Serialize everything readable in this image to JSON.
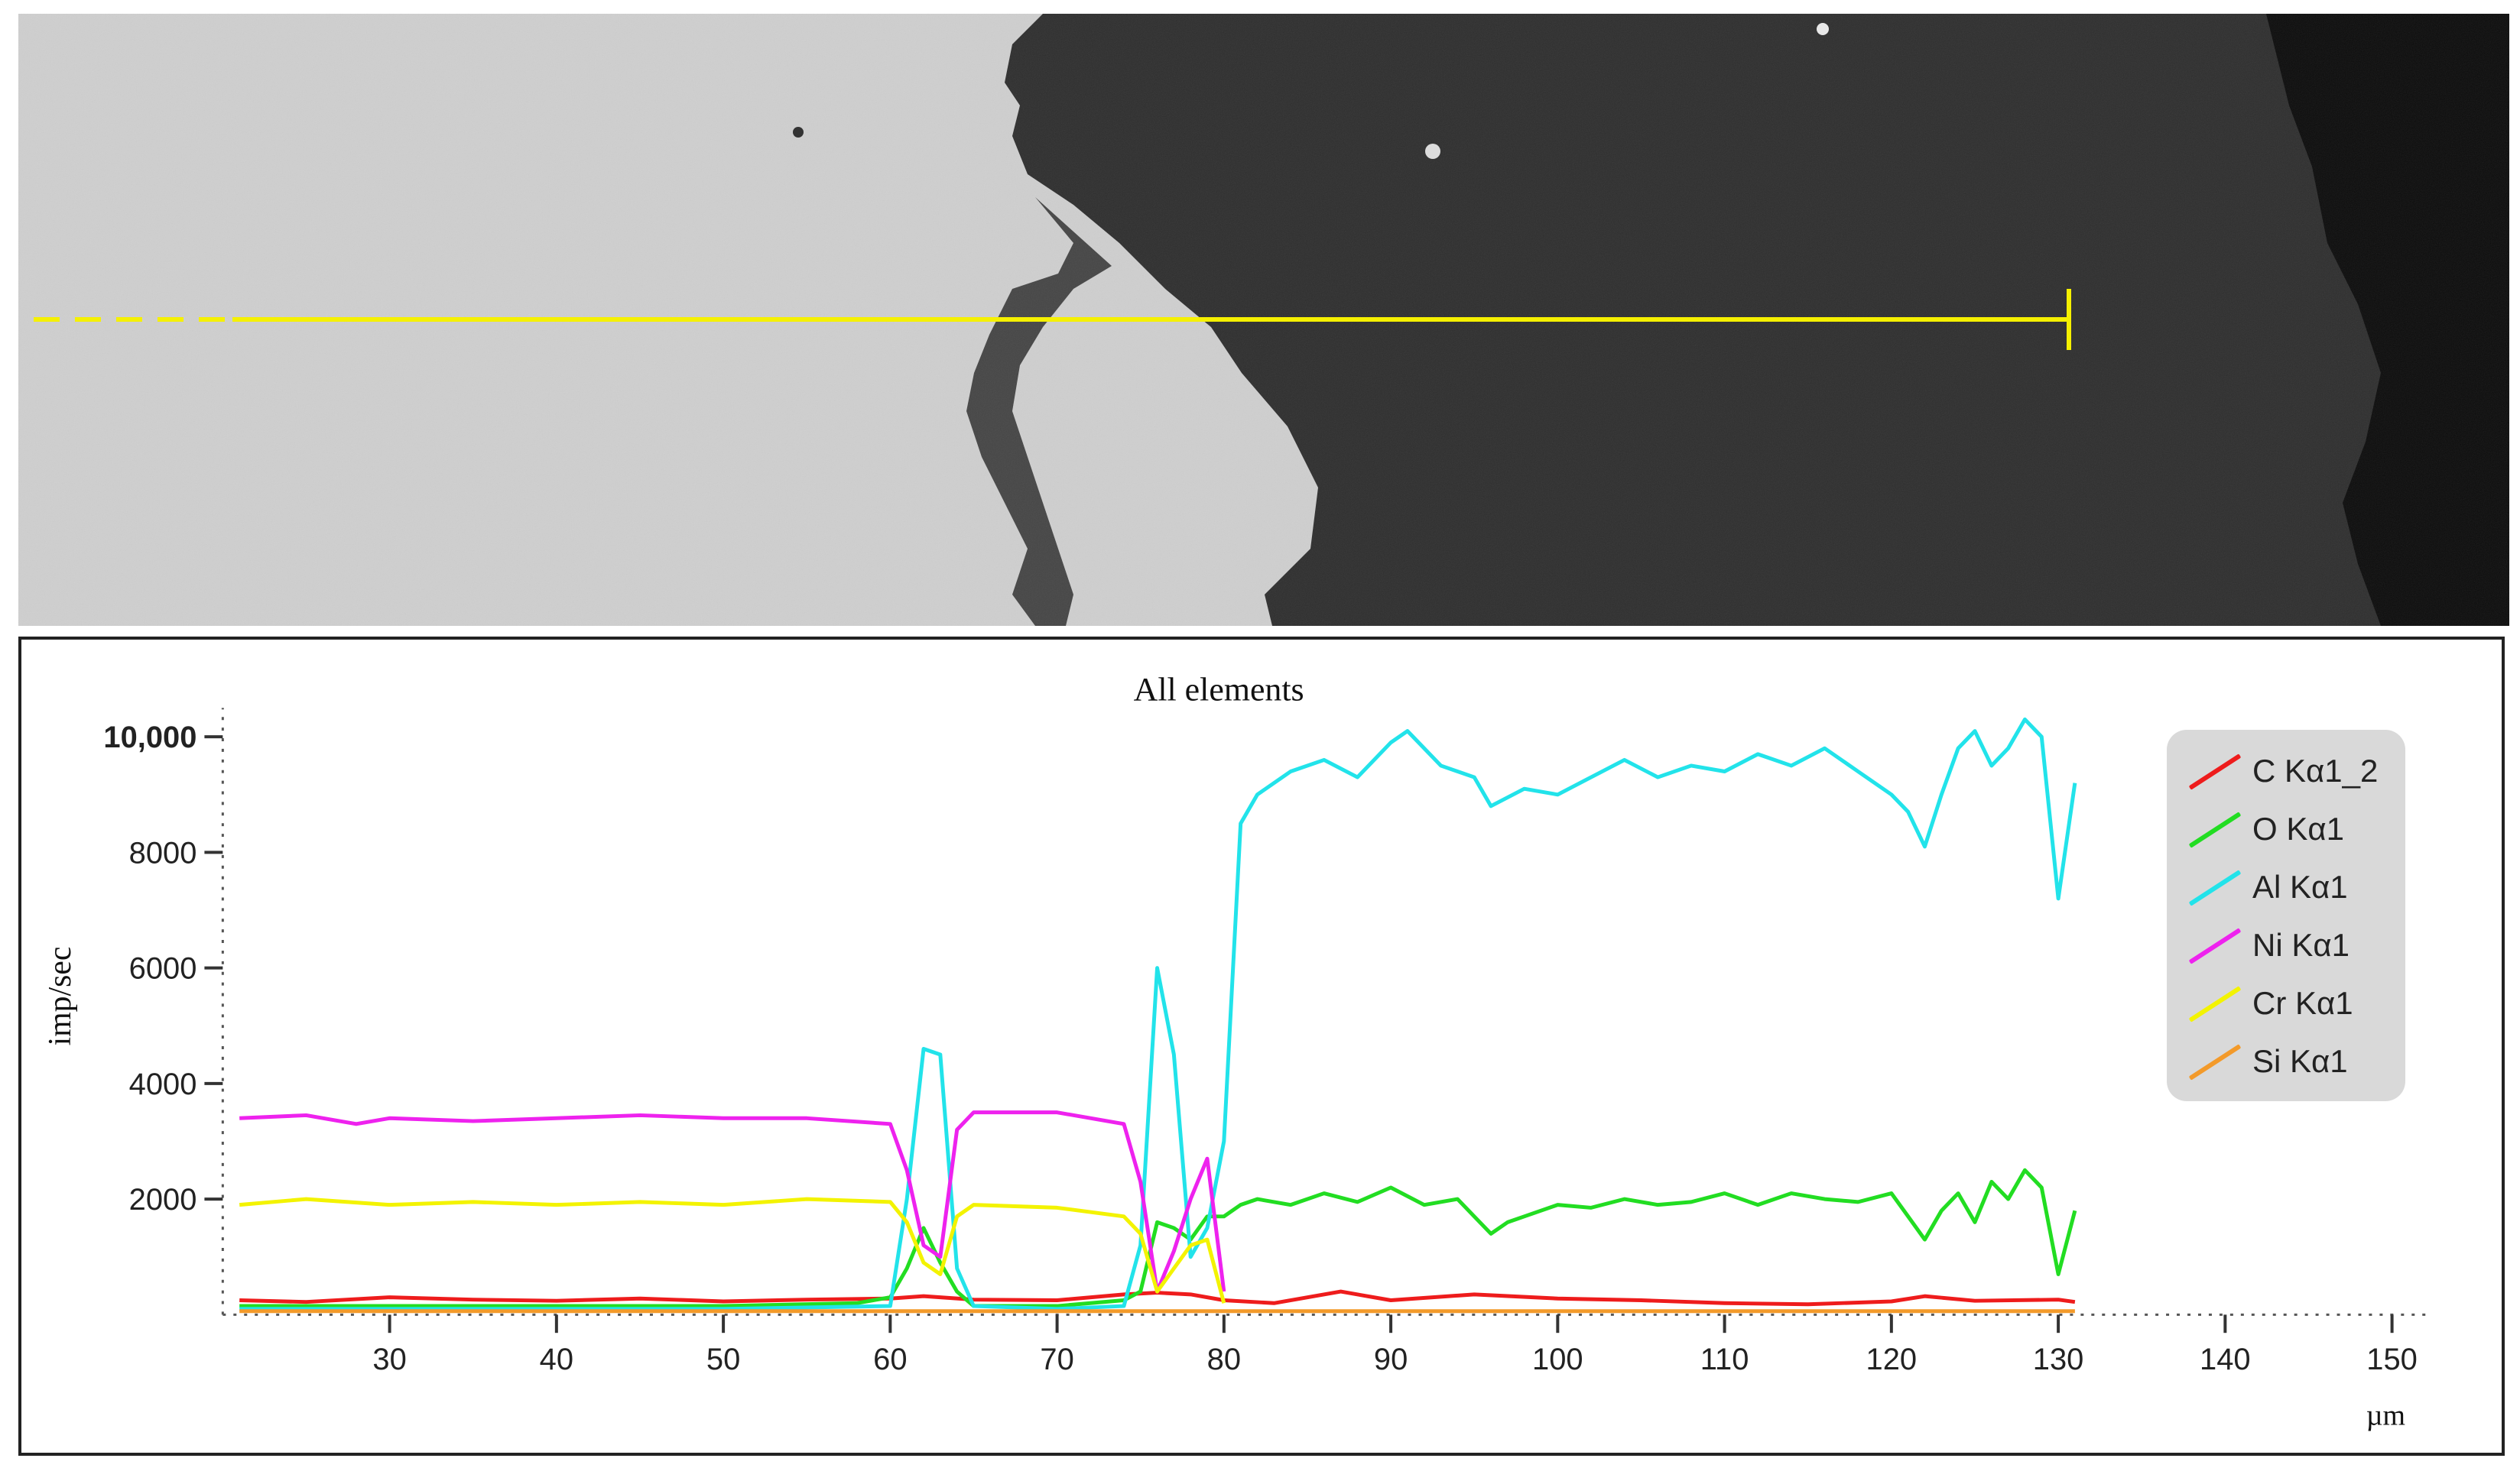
{
  "image": {
    "scan_line": "yellow line scan across SEM cross-section"
  },
  "chart_data": {
    "type": "line",
    "title": "All elements",
    "xlabel": "µm",
    "ylabel": "imp/sec",
    "xlim": [
      20,
      152
    ],
    "ylim": [
      0,
      10500
    ],
    "xticks": [
      30,
      40,
      50,
      60,
      70,
      80,
      90,
      100,
      110,
      120,
      130,
      140,
      150
    ],
    "yticks": [
      {
        "value": 2000,
        "label": "2000"
      },
      {
        "value": 4000,
        "label": "4000"
      },
      {
        "value": 6000,
        "label": "6000"
      },
      {
        "value": 8000,
        "label": "8000"
      },
      {
        "value": 10000,
        "label": "10,000"
      }
    ],
    "grid": false,
    "legend_position": "top-right",
    "series": [
      {
        "name": "C Kα1_2",
        "color": "#ee1c1c",
        "x": [
          21,
          25,
          30,
          35,
          40,
          45,
          50,
          55,
          60,
          62,
          65,
          70,
          74,
          76,
          78,
          80,
          83,
          87,
          90,
          95,
          100,
          105,
          110,
          115,
          120,
          122,
          125,
          130,
          131
        ],
        "y": [
          250,
          220,
          300,
          260,
          240,
          280,
          230,
          260,
          280,
          320,
          260,
          250,
          350,
          380,
          350,
          250,
          200,
          400,
          250,
          350,
          280,
          250,
          200,
          180,
          230,
          320,
          240,
          260,
          220
        ]
      },
      {
        "name": "O Kα1",
        "color": "#22dd22",
        "x": [
          21,
          30,
          40,
          50,
          58,
          60,
          61,
          62,
          63,
          64,
          65,
          70,
          74,
          75,
          76,
          77,
          78,
          79,
          80,
          81,
          82,
          84,
          86,
          88,
          90,
          92,
          94,
          95,
          96,
          97,
          98,
          100,
          102,
          104,
          106,
          108,
          110,
          112,
          114,
          116,
          118,
          120,
          121,
          122,
          123,
          124,
          125,
          126,
          127,
          128,
          129,
          130,
          131
        ],
        "y": [
          150,
          150,
          150,
          150,
          200,
          300,
          800,
          1500,
          900,
          400,
          150,
          150,
          250,
          400,
          1600,
          1500,
          1300,
          1700,
          1700,
          1900,
          2000,
          1900,
          2100,
          1950,
          2200,
          1900,
          2000,
          1700,
          1400,
          1600,
          1700,
          1900,
          1850,
          2000,
          1900,
          1950,
          2100,
          1900,
          2100,
          2000,
          1950,
          2100,
          1700,
          1300,
          1800,
          2100,
          1600,
          2300,
          2000,
          2500,
          2200,
          700,
          1800
        ]
      },
      {
        "name": "Al Kα1",
        "color": "#22e3ea",
        "x": [
          21,
          30,
          40,
          50,
          60,
          61,
          62,
          63,
          64,
          65,
          70,
          74,
          75,
          76,
          77,
          78,
          79,
          80,
          81,
          82,
          84,
          86,
          88,
          90,
          91,
          93,
          95,
          96,
          98,
          100,
          102,
          104,
          106,
          108,
          110,
          112,
          114,
          116,
          118,
          120,
          121,
          122,
          123,
          124,
          125,
          126,
          127,
          128,
          129,
          130,
          131
        ],
        "y": [
          100,
          100,
          100,
          100,
          150,
          2000,
          4600,
          4500,
          800,
          150,
          100,
          150,
          1200,
          6000,
          4500,
          1000,
          1500,
          3000,
          8500,
          9000,
          9400,
          9600,
          9300,
          9900,
          10100,
          9500,
          9300,
          8800,
          9100,
          9000,
          9300,
          9600,
          9300,
          9500,
          9400,
          9700,
          9500,
          9800,
          9400,
          9000,
          8700,
          8100,
          9000,
          9800,
          10100,
          9500,
          9800,
          10300,
          10000,
          7200,
          9200
        ]
      },
      {
        "name": "Ni Kα1",
        "color": "#ee22ee",
        "x": [
          21,
          25,
          28,
          30,
          35,
          40,
          45,
          50,
          55,
          60,
          61,
          62,
          63,
          64,
          65,
          70,
          74,
          75,
          76,
          77,
          78,
          79,
          80
        ],
        "y": [
          3400,
          3450,
          3300,
          3400,
          3350,
          3400,
          3450,
          3400,
          3400,
          3300,
          2500,
          1200,
          1000,
          3200,
          3500,
          3500,
          3300,
          2300,
          400,
          1100,
          2000,
          2700,
          400
        ]
      },
      {
        "name": "Cr Kα1",
        "color": "#f3f300",
        "x": [
          21,
          25,
          30,
          35,
          40,
          45,
          50,
          55,
          60,
          61,
          62,
          63,
          64,
          65,
          70,
          74,
          75,
          76,
          77,
          78,
          79,
          80
        ],
        "y": [
          1900,
          2000,
          1900,
          1950,
          1900,
          1950,
          1900,
          2000,
          1950,
          1600,
          900,
          700,
          1700,
          1900,
          1850,
          1700,
          1400,
          400,
          800,
          1200,
          1300,
          200
        ]
      },
      {
        "name": "Si Kα1",
        "color": "#f39a2a",
        "x": [
          21,
          40,
          60,
          80,
          100,
          120,
          131
        ],
        "y": [
          60,
          60,
          60,
          60,
          60,
          60,
          60
        ]
      }
    ]
  }
}
